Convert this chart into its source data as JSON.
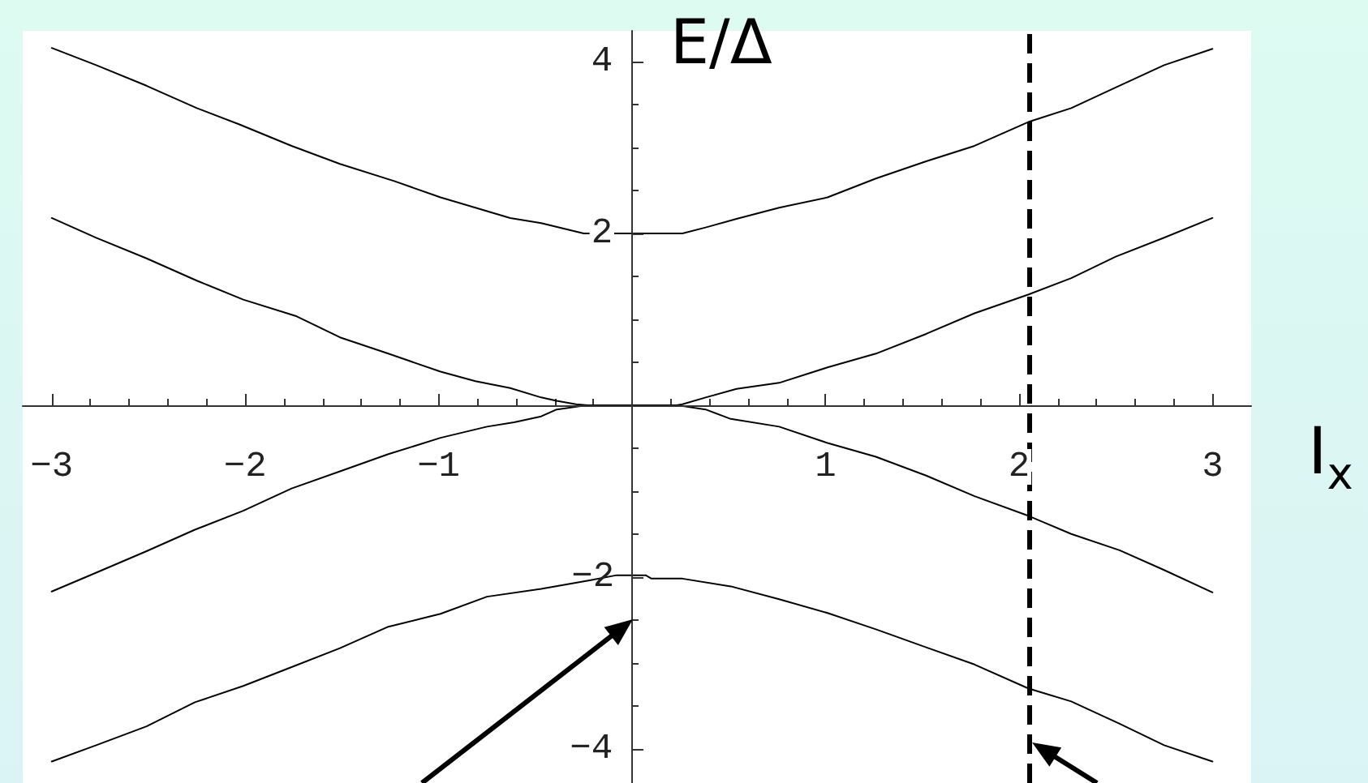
{
  "chart_data": {
    "type": "line",
    "xlabel": "I$_{x}$",
    "ylabel": "E/Δ",
    "marker": "none",
    "line_style": "solid",
    "xlim": [
      -3.15,
      3.2
    ],
    "ylim": [
      -4.4,
      4.36
    ],
    "xticks": [
      {
        "value": -3,
        "label": "−3"
      },
      {
        "value": -2.8,
        "label": null
      },
      {
        "value": -2.6,
        "label": null
      },
      {
        "value": -2.4,
        "label": null
      },
      {
        "value": -2.2,
        "label": null
      },
      {
        "value": -2,
        "label": "−2"
      },
      {
        "value": -1.8,
        "label": null
      },
      {
        "value": -1.6,
        "label": null
      },
      {
        "value": -1.4,
        "label": null
      },
      {
        "value": -1.2,
        "label": null
      },
      {
        "value": -1,
        "label": "−1"
      },
      {
        "value": -0.8,
        "label": null
      },
      {
        "value": -0.6,
        "label": null
      },
      {
        "value": -0.4,
        "label": null
      },
      {
        "value": -0.2,
        "label": null
      },
      {
        "value": 0.2,
        "label": null
      },
      {
        "value": 0.4,
        "label": null
      },
      {
        "value": 0.6,
        "label": null
      },
      {
        "value": 0.8,
        "label": null
      },
      1,
      {
        "value": 1.2,
        "label": null
      },
      {
        "value": 1.4,
        "label": null
      },
      {
        "value": 1.6,
        "label": null
      },
      {
        "value": 1.8,
        "label": null
      },
      2,
      {
        "value": 2.2,
        "label": null
      },
      {
        "value": 2.4,
        "label": null
      },
      {
        "value": 2.6,
        "label": null
      },
      {
        "value": 2.8,
        "label": null
      },
      3
    ],
    "yticks": [
      4,
      {
        "value": 3.5,
        "label": null
      },
      {
        "value": 3,
        "label": null
      },
      {
        "value": 2.5,
        "label": null
      },
      2,
      {
        "value": 1.5,
        "label": null
      },
      {
        "value": 1,
        "label": null
      },
      {
        "value": 0.5,
        "label": null
      },
      {
        "value": -0.5,
        "label": null
      },
      {
        "value": -1,
        "label": null
      },
      {
        "value": -1.5,
        "label": null
      },
      {
        "value": -2,
        "label": "−2"
      },
      {
        "value": -2.5,
        "label": null
      },
      {
        "value": -3,
        "label": null
      },
      {
        "value": -3.5,
        "label": null
      },
      {
        "value": -4,
        "label": "−4"
      }
    ],
    "series": [
      {
        "color": "#000000",
        "x": [
          -3,
          -2.77,
          -2.51,
          -2.25,
          -2.03,
          -1.76,
          -1.51,
          -1.23,
          -0.99,
          -0.81,
          -0.63,
          -0.47,
          -0.25,
          0.26,
          0.38,
          0.54,
          0.76,
          1.01,
          1.26,
          1.52,
          1.77,
          2.05,
          2.27,
          2.5,
          2.75,
          3
        ],
        "values": [
          4.16,
          3.96,
          3.72,
          3.46,
          3.27,
          3.02,
          2.81,
          2.61,
          2.42,
          2.3,
          2.18,
          2.12,
          2,
          2,
          2.07,
          2.17,
          2.3,
          2.42,
          2.64,
          2.84,
          3.02,
          3.3,
          3.46,
          3.7,
          3.96,
          4.15
        ]
      },
      {
        "color": "#000000",
        "x": [
          -3,
          -2.77,
          -2.51,
          -2.25,
          -2.01,
          -1.74,
          -1.51,
          -1.26,
          -0.99,
          -0.81,
          -0.63,
          -0.47,
          -0.39,
          -0.29,
          -0.23,
          0.23,
          0.26,
          0.38,
          0.54,
          0.76,
          1.01,
          1.26,
          1.52,
          1.77,
          2.05,
          2.27,
          2.5,
          2.75,
          3
        ],
        "values": [
          2.18,
          1.95,
          1.71,
          1.45,
          1.23,
          1.04,
          0.79,
          0.6,
          0.39,
          0.28,
          0.2,
          0.09,
          0.05,
          0.01,
          0,
          0,
          0.01,
          0.09,
          0.19,
          0.26,
          0.44,
          0.6,
          0.83,
          1.07,
          1.29,
          1.48,
          1.73,
          1.95,
          2.18
        ]
      },
      {
        "color": "#000000",
        "x": [
          -3,
          -2.77,
          -2.51,
          -2.26,
          -2.01,
          -1.76,
          -1.51,
          -1.26,
          -0.99,
          -0.75,
          -0.61,
          -0.47,
          -0.39,
          -0.23,
          0.23,
          0.38,
          0.51,
          0.76,
          1.01,
          1.26,
          1.52,
          1.77,
          2.05,
          2.27,
          2.52,
          2.75,
          3
        ],
        "values": [
          -2.17,
          -1.95,
          -1.7,
          -1.45,
          -1.23,
          -0.97,
          -0.77,
          -0.57,
          -0.38,
          -0.25,
          -0.2,
          -0.13,
          -0.05,
          0,
          0,
          -0.05,
          -0.16,
          -0.25,
          -0.44,
          -0.6,
          -0.82,
          -1.06,
          -1.29,
          -1.5,
          -1.69,
          -1.92,
          -2.18
        ]
      },
      {
        "color": "#000000",
        "x": [
          -3,
          -2.77,
          -2.51,
          -2.26,
          -2.01,
          -1.76,
          -1.51,
          -1.26,
          -0.99,
          -0.75,
          -0.47,
          -0.22,
          -0.08,
          0.07,
          0.1,
          0.26,
          0.51,
          0.76,
          1.01,
          1.26,
          1.52,
          1.77,
          2.05,
          2.27,
          2.52,
          2.75,
          3
        ],
        "values": [
          -4.15,
          -3.96,
          -3.74,
          -3.46,
          -3.27,
          -3.05,
          -2.83,
          -2.58,
          -2.43,
          -2.23,
          -2.14,
          -2.04,
          -1.98,
          -1.98,
          -2.02,
          -2.02,
          -2.11,
          -2.26,
          -2.42,
          -2.61,
          -2.82,
          -3.02,
          -3.3,
          -3.45,
          -3.71,
          -3.96,
          -4.15
        ]
      }
    ],
    "ref_lines": [
      {
        "axis": "x",
        "value": 2.05,
        "color": "#000000",
        "line_style": "dashed"
      }
    ]
  }
}
